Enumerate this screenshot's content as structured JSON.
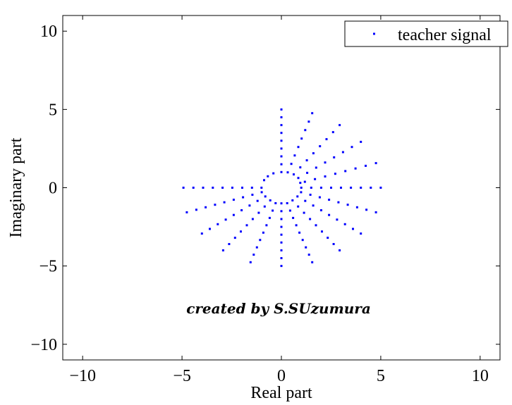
{
  "chart_data": {
    "type": "scatter",
    "title": "",
    "xlabel": "Real part",
    "ylabel": "Imaginary part",
    "xlim": [
      -11,
      11
    ],
    "ylim": [
      -11,
      11
    ],
    "xticks": [
      -10,
      -5,
      0,
      5,
      10
    ],
    "yticks": [
      -10,
      -5,
      0,
      5,
      10
    ],
    "xtick_labels": [
      "−10",
      "−5",
      "0",
      "5",
      "10"
    ],
    "ytick_labels": [
      "−10",
      "−5",
      "0",
      "5",
      "10"
    ],
    "grid": false,
    "legend_position": "top-right",
    "annotation": "created by S.SUzumura",
    "series": [
      {
        "name": "teacher signal",
        "color": "#0000ff",
        "marker": "point",
        "points": [
          [
            -4.93,
            0.0
          ],
          [
            -4.43,
            0.0
          ],
          [
            -3.94,
            0.0
          ],
          [
            -3.45,
            0.0
          ],
          [
            -2.96,
            0.0
          ],
          [
            -2.47,
            0.0
          ],
          [
            -1.97,
            0.0
          ],
          [
            -1.48,
            0.0
          ],
          [
            -1.0,
            0.0
          ],
          [
            -4.76,
            -1.57
          ],
          [
            -4.28,
            -1.41
          ],
          [
            -3.81,
            -1.25
          ],
          [
            -3.34,
            -1.09
          ],
          [
            -2.87,
            -0.93
          ],
          [
            -2.4,
            -0.77
          ],
          [
            -1.93,
            -0.61
          ],
          [
            -1.46,
            -0.45
          ],
          [
            -0.99,
            -0.29
          ],
          [
            -4.0,
            -2.93
          ],
          [
            -3.6,
            -2.63
          ],
          [
            -3.2,
            -2.33
          ],
          [
            -2.8,
            -2.04
          ],
          [
            -2.4,
            -1.74
          ],
          [
            -2.0,
            -1.44
          ],
          [
            -1.6,
            -1.14
          ],
          [
            -1.2,
            -0.84
          ],
          [
            -0.81,
            -0.56
          ],
          [
            -2.93,
            -4.0
          ],
          [
            -2.63,
            -3.6
          ],
          [
            -2.33,
            -3.2
          ],
          [
            -2.04,
            -2.8
          ],
          [
            -1.74,
            -2.4
          ],
          [
            -1.44,
            -2.0
          ],
          [
            -1.14,
            -1.6
          ],
          [
            -0.84,
            -1.2
          ],
          [
            -0.56,
            -0.81
          ],
          [
            -1.55,
            -4.76
          ],
          [
            -1.39,
            -4.28
          ],
          [
            -1.23,
            -3.81
          ],
          [
            -1.07,
            -3.34
          ],
          [
            -0.91,
            -2.87
          ],
          [
            -0.75,
            -2.4
          ],
          [
            -0.59,
            -1.93
          ],
          [
            -0.44,
            -1.46
          ],
          [
            -0.29,
            -0.99
          ],
          [
            0.0,
            -5.0
          ],
          [
            0.0,
            -4.5
          ],
          [
            0.0,
            -4.0
          ],
          [
            0.0,
            -3.5
          ],
          [
            0.0,
            -3.0
          ],
          [
            0.0,
            -2.5
          ],
          [
            0.0,
            -2.0
          ],
          [
            0.0,
            -1.5
          ],
          [
            0.0,
            -1.0
          ],
          [
            1.55,
            -4.76
          ],
          [
            1.39,
            -4.28
          ],
          [
            1.23,
            -3.81
          ],
          [
            1.07,
            -3.34
          ],
          [
            0.91,
            -2.87
          ],
          [
            0.75,
            -2.4
          ],
          [
            0.59,
            -1.93
          ],
          [
            0.44,
            -1.46
          ],
          [
            0.29,
            -0.99
          ],
          [
            2.93,
            -4.0
          ],
          [
            2.63,
            -3.6
          ],
          [
            2.33,
            -3.2
          ],
          [
            2.04,
            -2.8
          ],
          [
            1.74,
            -2.4
          ],
          [
            1.44,
            -2.0
          ],
          [
            1.14,
            -1.6
          ],
          [
            0.84,
            -1.2
          ],
          [
            0.56,
            -0.81
          ],
          [
            4.0,
            -2.93
          ],
          [
            3.6,
            -2.63
          ],
          [
            3.2,
            -2.33
          ],
          [
            2.8,
            -2.04
          ],
          [
            2.4,
            -1.74
          ],
          [
            2.0,
            -1.44
          ],
          [
            1.6,
            -1.14
          ],
          [
            1.2,
            -0.84
          ],
          [
            0.81,
            -0.56
          ],
          [
            4.76,
            -1.57
          ],
          [
            4.28,
            -1.41
          ],
          [
            3.81,
            -1.25
          ],
          [
            3.34,
            -1.09
          ],
          [
            2.87,
            -0.93
          ],
          [
            2.4,
            -0.77
          ],
          [
            1.93,
            -0.61
          ],
          [
            1.46,
            -0.45
          ],
          [
            0.99,
            -0.29
          ],
          [
            5.0,
            0.0
          ],
          [
            4.5,
            0.0
          ],
          [
            4.0,
            0.0
          ],
          [
            3.5,
            0.0
          ],
          [
            3.0,
            0.0
          ],
          [
            2.5,
            0.0
          ],
          [
            2.0,
            0.0
          ],
          [
            1.5,
            0.0
          ],
          [
            1.0,
            0.0
          ],
          [
            4.76,
            1.57
          ],
          [
            4.24,
            1.4
          ],
          [
            3.73,
            1.23
          ],
          [
            3.22,
            1.06
          ],
          [
            2.71,
            0.89
          ],
          [
            2.2,
            0.72
          ],
          [
            1.69,
            0.55
          ],
          [
            1.18,
            0.38
          ],
          [
            0.95,
            0.31
          ],
          [
            4.0,
            2.93
          ],
          [
            3.55,
            2.6
          ],
          [
            3.1,
            2.27
          ],
          [
            2.65,
            1.94
          ],
          [
            2.2,
            1.61
          ],
          [
            1.75,
            1.28
          ],
          [
            1.3,
            0.95
          ],
          [
            0.85,
            0.62
          ],
          [
            2.93,
            4.0
          ],
          [
            2.6,
            3.55
          ],
          [
            2.27,
            3.1
          ],
          [
            1.94,
            2.65
          ],
          [
            1.61,
            2.2
          ],
          [
            1.28,
            1.75
          ],
          [
            0.95,
            1.3
          ],
          [
            0.62,
            0.85
          ],
          [
            1.55,
            4.76
          ],
          [
            1.38,
            4.22
          ],
          [
            1.2,
            3.68
          ],
          [
            1.02,
            3.14
          ],
          [
            0.85,
            2.6
          ],
          [
            0.67,
            2.06
          ],
          [
            0.5,
            1.52
          ],
          [
            0.32,
            0.98
          ],
          [
            0.0,
            5.0
          ],
          [
            0.0,
            4.5
          ],
          [
            0.0,
            4.0
          ],
          [
            0.0,
            3.5
          ],
          [
            0.0,
            3.0
          ],
          [
            0.0,
            2.5
          ],
          [
            0.0,
            2.0
          ],
          [
            0.0,
            1.5
          ],
          [
            0.0,
            1.0
          ],
          [
            -0.4,
            0.92
          ],
          [
            -0.68,
            0.73
          ],
          [
            -0.87,
            0.48
          ]
        ]
      }
    ]
  }
}
